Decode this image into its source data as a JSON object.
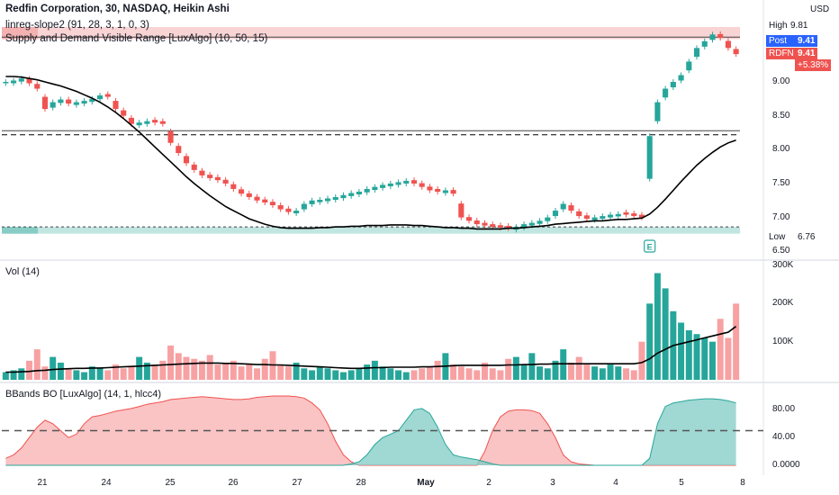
{
  "header": {
    "title": "Redfin Corporation, 30, NASDAQ, Heikin Ashi",
    "indicator1": "linreg-slope2 (91, 28, 3, 1, 0, 3)",
    "indicator2": "Supply and Demand Visible Range [LuxAlgo] (10, 50, 15)",
    "currency": "USD"
  },
  "price_badges": {
    "high_label": "High",
    "high_value": "9.81",
    "post_label": "Post",
    "post_value": "9.41",
    "ticker_label": "RDFN",
    "ticker_value": "9.41",
    "change": "+5.38%",
    "low_label": "Low",
    "low_value": "6.76"
  },
  "earnings_marker": "E",
  "volume_pane": {
    "label": "Vol (14)"
  },
  "bbands_pane": {
    "label": "BBands BO [LuxAlgo] (14, 1, hlcc4)"
  },
  "colors": {
    "up": "#26a69a",
    "down": "#ef5350",
    "ma": "#000000",
    "vol_up": "#26a69a",
    "vol_down": "#f7a1a3"
  },
  "chart_data": [
    {
      "type": "candlestick",
      "title": "Redfin Corporation, 30, NASDAQ, Heikin Ashi",
      "x_ticks": [
        "21",
        "24",
        "25",
        "26",
        "27",
        "28",
        "May",
        "2",
        "3",
        "4",
        "5",
        "8"
      ],
      "y_ticks": [
        "9.00",
        "8.50",
        "8.00",
        "7.50",
        "7.00",
        "6.50"
      ],
      "ylim": [
        6.45,
        9.85
      ],
      "close": [
        9.0,
        9.02,
        9.05,
        8.98,
        8.9,
        8.6,
        8.7,
        8.74,
        8.68,
        8.7,
        8.72,
        8.75,
        8.8,
        8.78,
        8.6,
        8.5,
        8.38,
        8.4,
        8.42,
        8.4,
        8.38,
        8.1,
        7.95,
        7.8,
        7.7,
        7.62,
        7.58,
        7.55,
        7.5,
        7.42,
        7.35,
        7.3,
        7.25,
        7.22,
        7.18,
        7.12,
        7.08,
        7.1,
        7.2,
        7.25,
        7.26,
        7.28,
        7.3,
        7.33,
        7.36,
        7.38,
        7.42,
        7.45,
        7.48,
        7.5,
        7.52,
        7.54,
        7.5,
        7.45,
        7.4,
        7.38,
        7.4,
        7.35,
        7.0,
        6.95,
        6.9,
        6.88,
        6.86,
        6.85,
        6.84,
        6.86,
        6.9,
        6.92,
        6.95,
        7.0,
        7.1,
        7.2,
        7.1,
        7.02,
        6.98,
        7.0,
        7.02,
        7.04,
        7.05,
        7.04,
        7.02,
        7.0,
        8.2,
        8.7,
        8.9,
        9.0,
        9.1,
        9.3,
        9.5,
        9.6,
        9.7,
        9.65,
        9.5,
        9.41
      ],
      "ma": [
        9.08,
        9.08,
        9.07,
        9.05,
        9.03,
        9.0,
        8.97,
        8.94,
        8.9,
        8.86,
        8.81,
        8.76,
        8.7,
        8.63,
        8.55,
        8.46,
        8.36,
        8.26,
        8.15,
        8.04,
        7.93,
        7.82,
        7.71,
        7.6,
        7.5,
        7.41,
        7.32,
        7.24,
        7.16,
        7.1,
        7.04,
        6.98,
        6.94,
        6.9,
        6.87,
        6.85,
        6.84,
        6.84,
        6.84,
        6.84,
        6.85,
        6.85,
        6.86,
        6.86,
        6.87,
        6.87,
        6.88,
        6.88,
        6.88,
        6.89,
        6.89,
        6.89,
        6.88,
        6.88,
        6.87,
        6.86,
        6.85,
        6.85,
        6.84,
        6.84,
        6.83,
        6.83,
        6.83,
        6.83,
        6.84,
        6.84,
        6.85,
        6.86,
        6.87,
        6.88,
        6.9,
        6.91,
        6.92,
        6.93,
        6.94,
        6.95,
        6.95,
        6.96,
        6.97,
        6.97,
        6.98,
        6.99,
        7.05,
        7.15,
        7.27,
        7.4,
        7.53,
        7.65,
        7.77,
        7.87,
        7.96,
        8.04,
        8.1,
        8.14
      ],
      "supply_zone": [
        9.63,
        9.81
      ],
      "demand_zone": [
        6.76,
        6.86
      ],
      "level_lines": [
        9.66,
        8.28,
        8.22,
        6.86
      ],
      "low": 6.76,
      "high": 9.81
    },
    {
      "type": "bar",
      "title": "Vol (14)",
      "y_ticks": [
        "300K",
        "200K",
        "100K"
      ],
      "ylim": [
        0,
        300000
      ],
      "volume": [
        20000,
        25000,
        30000,
        50000,
        80000,
        35000,
        60000,
        45000,
        30000,
        25000,
        20000,
        35000,
        30000,
        25000,
        40000,
        30000,
        35000,
        60000,
        45000,
        40000,
        50000,
        90000,
        70000,
        60000,
        55000,
        50000,
        65000,
        40000,
        45000,
        50000,
        35000,
        40000,
        30000,
        55000,
        75000,
        40000,
        35000,
        45000,
        30000,
        25000,
        35000,
        30000,
        25000,
        20000,
        25000,
        30000,
        40000,
        50000,
        35000,
        30000,
        25000,
        20000,
        25000,
        30000,
        35000,
        50000,
        70000,
        40000,
        35000,
        30000,
        25000,
        45000,
        30000,
        25000,
        55000,
        60000,
        40000,
        70000,
        35000,
        30000,
        50000,
        80000,
        45000,
        60000,
        40000,
        35000,
        30000,
        40000,
        35000,
        30000,
        25000,
        100000,
        200000,
        280000,
        240000,
        180000,
        150000,
        130000,
        120000,
        110000,
        100000,
        160000,
        110000,
        200000
      ],
      "ma": [
        20000,
        20000,
        21000,
        22000,
        24000,
        25000,
        27000,
        28000,
        29000,
        30000,
        30000,
        31000,
        31000,
        32000,
        33000,
        34000,
        35000,
        36000,
        37000,
        38000,
        39000,
        40000,
        41000,
        42000,
        43000,
        44000,
        44000,
        44000,
        43000,
        43000,
        42000,
        41000,
        40000,
        40000,
        39000,
        39000,
        38000,
        37000,
        36000,
        35000,
        34000,
        33000,
        32000,
        31000,
        30000,
        30000,
        31000,
        32000,
        32000,
        33000,
        33000,
        33000,
        33000,
        34000,
        34000,
        35000,
        36000,
        37000,
        38000,
        38000,
        38000,
        38000,
        38000,
        38000,
        39000,
        39000,
        40000,
        40000,
        41000,
        41000,
        42000,
        42000,
        42000,
        42000,
        42000,
        42000,
        42000,
        42000,
        42000,
        42000,
        42000,
        45000,
        55000,
        70000,
        80000,
        90000,
        95000,
        100000,
        105000,
        110000,
        115000,
        120000,
        125000,
        140000
      ]
    },
    {
      "type": "area",
      "title": "BBands BO [LuxAlgo] (14, 1, hlcc4)",
      "y_ticks": [
        "80.00",
        "40.00",
        "0.0000"
      ],
      "ylim": [
        0,
        100
      ],
      "threshold": 50,
      "bearish": [
        10,
        15,
        25,
        40,
        55,
        65,
        60,
        50,
        40,
        45,
        60,
        70,
        72,
        75,
        78,
        80,
        82,
        85,
        88,
        90,
        92,
        95,
        96,
        97,
        98,
        99,
        98,
        97,
        96,
        95,
        95,
        96,
        98,
        99,
        100,
        100,
        100,
        99,
        97,
        90,
        80,
        60,
        35,
        15,
        5,
        0,
        0,
        0,
        0,
        0,
        0,
        0,
        0,
        0,
        0,
        0,
        0,
        0,
        0,
        0,
        0,
        20,
        50,
        70,
        78,
        80,
        80,
        79,
        75,
        60,
        40,
        15,
        5,
        2,
        1,
        0,
        0,
        0,
        0,
        0,
        0,
        0,
        0,
        0,
        0,
        0,
        0,
        0,
        0,
        0,
        0,
        0,
        0,
        0
      ],
      "bullish": [
        0,
        0,
        0,
        0,
        0,
        0,
        0,
        0,
        0,
        0,
        0,
        0,
        0,
        0,
        0,
        0,
        0,
        0,
        0,
        0,
        0,
        0,
        0,
        0,
        0,
        0,
        0,
        0,
        0,
        0,
        0,
        0,
        0,
        0,
        0,
        0,
        0,
        0,
        0,
        0,
        0,
        0,
        0,
        0,
        2,
        5,
        15,
        30,
        40,
        45,
        50,
        65,
        80,
        82,
        75,
        55,
        30,
        15,
        12,
        10,
        8,
        5,
        2,
        0,
        0,
        0,
        0,
        0,
        0,
        0,
        0,
        0,
        0,
        0,
        0,
        0,
        0,
        0,
        0,
        0,
        0,
        0,
        10,
        60,
        85,
        90,
        92,
        94,
        95,
        96,
        96,
        95,
        93,
        90
      ]
    }
  ]
}
